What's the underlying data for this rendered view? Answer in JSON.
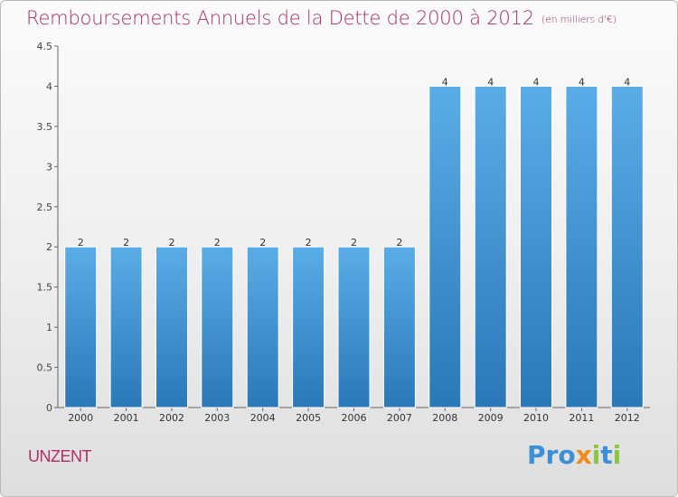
{
  "title": "Remboursements Annuels de la Dette de 2000 à 2012",
  "subtitle": "(en milliers d'€)",
  "place": "UNZENT",
  "logo": "Proxiti",
  "colors": {
    "title": "#b22d63",
    "bar_top": "#5aace6",
    "bar_bottom": "#2b78b8"
  },
  "chart_data": {
    "type": "bar",
    "categories": [
      "2000",
      "2001",
      "2002",
      "2003",
      "2004",
      "2005",
      "2006",
      "2007",
      "2008",
      "2009",
      "2010",
      "2011",
      "2012"
    ],
    "values": [
      2,
      2,
      2,
      2,
      2,
      2,
      2,
      2,
      4,
      4,
      4,
      4,
      4
    ],
    "data_labels": [
      "2",
      "2",
      "2",
      "2",
      "2",
      "2",
      "2",
      "2",
      "4",
      "4",
      "4",
      "4",
      "4"
    ],
    "title": "Remboursements Annuels de la Dette de 2000 à 2012",
    "xlabel": "",
    "ylabel": "",
    "ylim": [
      0,
      4.5
    ],
    "yticks": [
      0,
      0.5,
      1,
      1.5,
      2,
      2.5,
      3,
      3.5,
      4,
      4.5
    ],
    "ytick_labels": [
      "0",
      "0.5",
      "1",
      "1.5",
      "2",
      "2.5",
      "3",
      "3.5",
      "4",
      "4.5"
    ],
    "grid": false,
    "legend": "none"
  }
}
